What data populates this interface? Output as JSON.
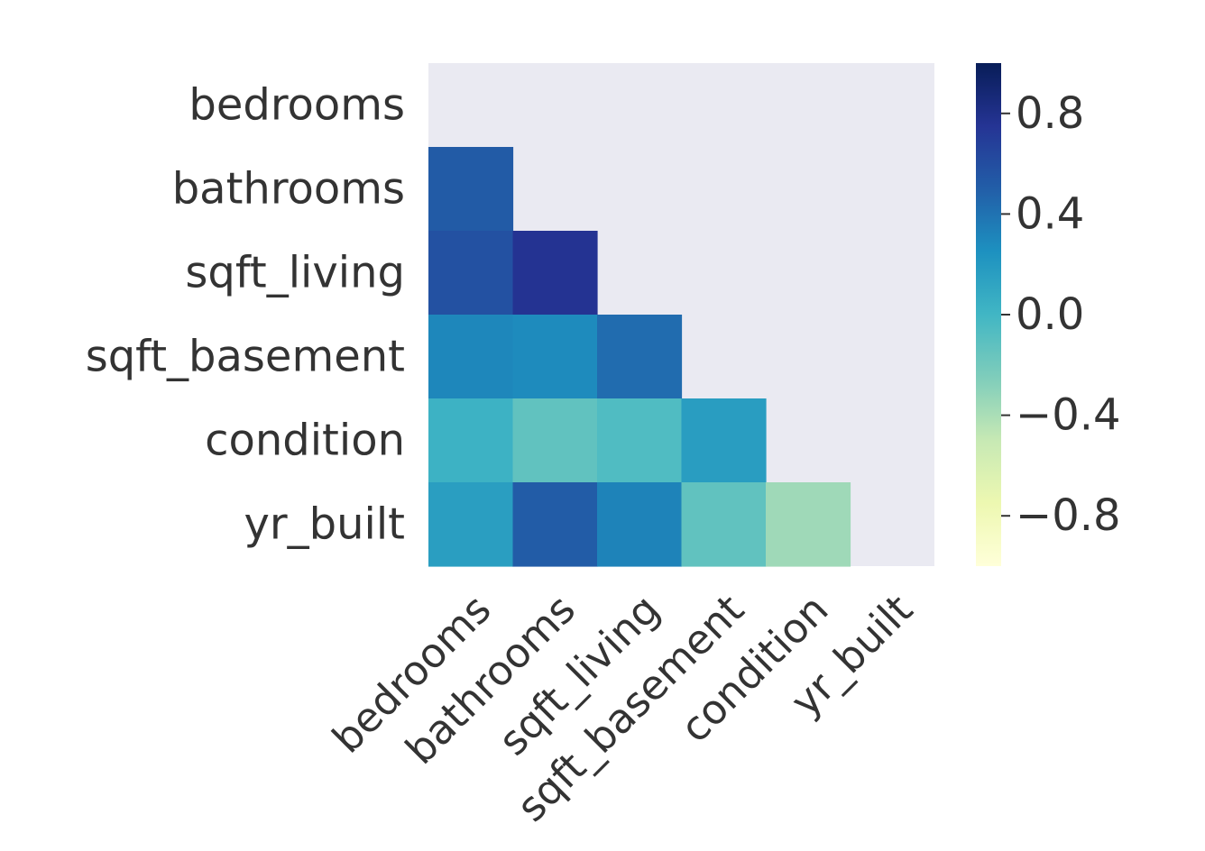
{
  "chart_data": {
    "type": "heatmap",
    "title": "",
    "xlabel": "",
    "ylabel": "",
    "mask": "upper-triangle-including-diagonal",
    "rows": [
      "bedrooms",
      "bathrooms",
      "sqft_living",
      "sqft_basement",
      "condition",
      "yr_built"
    ],
    "columns": [
      "bedrooms",
      "bathrooms",
      "sqft_living",
      "sqft_basement",
      "condition",
      "yr_built"
    ],
    "values": [
      [
        null,
        null,
        null,
        null,
        null,
        null
      ],
      [
        0.52,
        null,
        null,
        null,
        null,
        null
      ],
      [
        0.58,
        0.76,
        null,
        null,
        null,
        null
      ],
      [
        0.3,
        0.28,
        0.43,
        null,
        null,
        null
      ],
      [
        0.03,
        -0.13,
        -0.06,
        0.17,
        null,
        null
      ],
      [
        0.16,
        0.51,
        0.32,
        -0.13,
        -0.36,
        null
      ]
    ],
    "colorbar": {
      "vmin": -1.0,
      "vmax": 1.0,
      "ticks": [
        0.8,
        0.4,
        0.0,
        -0.4,
        -0.8
      ],
      "tick_labels": [
        "0.8",
        "0.4",
        "0.0",
        "−0.4",
        "−0.8"
      ],
      "colormap": "YlGnBu",
      "colors": [
        "#ffffd9",
        "#edf8b1",
        "#c7e9b4",
        "#7fcdbb",
        "#41b6c4",
        "#1d91c0",
        "#225ea8",
        "#253494",
        "#081d58"
      ]
    },
    "background_color": "#eaeaf2",
    "grid": false
  }
}
